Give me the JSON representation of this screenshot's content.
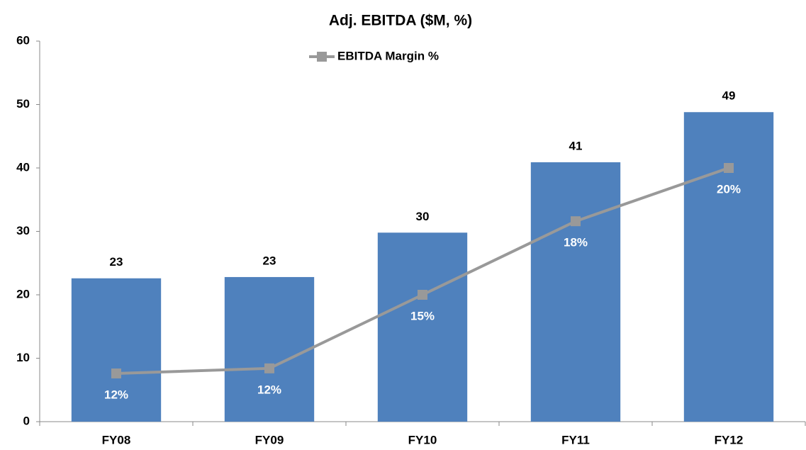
{
  "chart_data": {
    "type": "bar",
    "title": "Adj. EBITDA ($M, %)",
    "categories": [
      "FY08",
      "FY09",
      "FY10",
      "FY11",
      "FY12"
    ],
    "series": [
      {
        "type": "bar",
        "color": "#4f81bd",
        "values": [
          22.6,
          22.8,
          29.8,
          40.9,
          48.8
        ],
        "value_labels": [
          "23",
          "23",
          "30",
          "41",
          "49"
        ]
      },
      {
        "type": "line",
        "name": "EBITDA Margin %",
        "axis": "y2",
        "color": "#999999",
        "values": [
          11.9,
          12.1,
          15,
          17.9,
          20
        ],
        "value_labels": [
          "12%",
          "12%",
          "15%",
          "18%",
          "20%"
        ]
      }
    ],
    "ylim": [
      0,
      60
    ],
    "yticks": [
      0,
      10,
      20,
      30,
      40,
      50,
      60
    ],
    "y2lim": [
      10,
      25
    ],
    "legend": "top"
  }
}
